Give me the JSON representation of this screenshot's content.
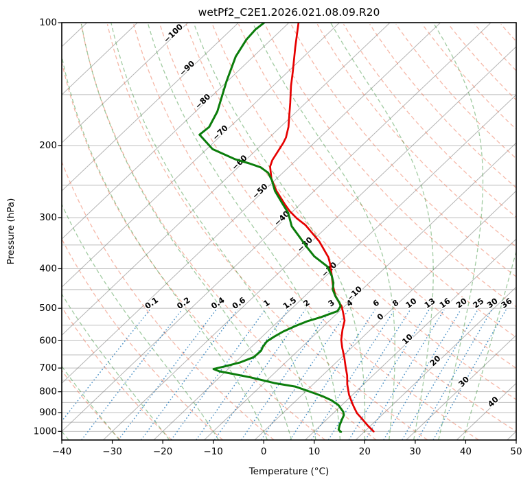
{
  "title": "wetPf2_C2E1.2026.021.08.09.R20",
  "axes": {
    "x_label": "Temperature (°C)",
    "y_label": "Pressure (hPa)",
    "x_ticks": [
      -40,
      -30,
      -20,
      -10,
      0,
      10,
      20,
      30,
      40,
      50
    ],
    "y_ticks": [
      100,
      200,
      300,
      400,
      500,
      600,
      700,
      800,
      900,
      1000
    ],
    "x_range": [
      -40,
      50
    ],
    "p_range": [
      100,
      1050
    ],
    "y_scale": "log",
    "grid": true
  },
  "background": {
    "pressure_lines": {
      "start": 100,
      "end": 1000,
      "step": 50,
      "color": "#999999",
      "opacity": 0.65
    },
    "isotherms": {
      "start": -130,
      "end": 50,
      "step": 10,
      "color": "#777777",
      "opacity": 0.55
    },
    "dry_adiabats": {
      "start": -30,
      "end": 200,
      "step": 10,
      "color": "#ed7151",
      "opacity": 0.5
    },
    "moist_adiabats": {
      "values": [
        -40,
        -30,
        -20,
        -10,
        0,
        5,
        10,
        15,
        20,
        25,
        30,
        35,
        40
      ],
      "color": "#2e8b2e",
      "opacity": 0.45
    },
    "mixing_ratios": {
      "values": [
        0.1,
        0.2,
        0.4,
        0.6,
        1,
        1.5,
        2,
        3,
        4,
        6,
        8,
        10,
        13,
        16,
        20,
        25,
        30,
        36
      ],
      "color": "#2e7ebc",
      "opacity": 0.9,
      "bottom_pressure": 1050,
      "top_pressure": 500,
      "label_pressure": 487
    }
  },
  "line_labels": {
    "isotherm_values": [
      -100,
      -90,
      -80,
      -70,
      -60,
      -50,
      -40,
      -30,
      -20,
      -10,
      0,
      10,
      20,
      30,
      40
    ],
    "negative_color": "#1f77b4",
    "zero_color": "#7f7f7f",
    "positive_color": "#c62828",
    "mixing_color": "#1f77b4",
    "cross_theta_k": 328.15
  },
  "chart_data": {
    "type": "line",
    "projection": "skew-t-log-p",
    "title": "wetPf2_C2E1.2026.021.08.09.R20",
    "xlabel": "Temperature (°C)",
    "ylabel": "Pressure (hPa)",
    "x_range": [
      -40,
      50
    ],
    "y_range_hpa": [
      1050,
      100
    ],
    "y_scale": "log",
    "point_format": "[pressure_hPa, temperature_C]",
    "series": [
      {
        "name": "temperature",
        "color": "#e60000",
        "width": 2.7,
        "points": [
          [
            100,
            -78.1
          ],
          [
            115,
            -73.6
          ],
          [
            132,
            -69.0
          ],
          [
            143,
            -66.4
          ],
          [
            157,
            -63.1
          ],
          [
            180,
            -58.4
          ],
          [
            191,
            -56.7
          ],
          [
            197,
            -56.1
          ],
          [
            217,
            -54.7
          ],
          [
            225,
            -53.8
          ],
          [
            241,
            -51.0
          ],
          [
            258,
            -47.5
          ],
          [
            278,
            -43.1
          ],
          [
            289,
            -40.7
          ],
          [
            301,
            -37.8
          ],
          [
            313,
            -34.6
          ],
          [
            343,
            -28.5
          ],
          [
            375,
            -23.4
          ],
          [
            390,
            -21.6
          ],
          [
            413,
            -19.2
          ],
          [
            438,
            -16.8
          ],
          [
            464,
            -14.2
          ],
          [
            483,
            -12.0
          ],
          [
            494,
            -10.6
          ],
          [
            512,
            -9.0
          ],
          [
            536,
            -7.0
          ],
          [
            563,
            -5.6
          ],
          [
            597,
            -3.7
          ],
          [
            625,
            -1.8
          ],
          [
            658,
            0.5
          ],
          [
            692,
            2.6
          ],
          [
            730,
            4.9
          ],
          [
            768,
            6.8
          ],
          [
            814,
            9.3
          ],
          [
            852,
            11.6
          ],
          [
            872,
            12.8
          ],
          [
            903,
            14.7
          ],
          [
            931,
            16.8
          ],
          [
            968,
            19.4
          ],
          [
            1001,
            21.8
          ]
        ]
      },
      {
        "name": "dewpoint",
        "color": "#0b7d0b",
        "width": 3,
        "points": [
          [
            100,
            -84.9
          ],
          [
            104,
            -85.2
          ],
          [
            110,
            -84.9
          ],
          [
            121,
            -83.5
          ],
          [
            139,
            -80.2
          ],
          [
            165,
            -75.7
          ],
          [
            180,
            -74.1
          ],
          [
            188,
            -74.4
          ],
          [
            204,
            -68.8
          ],
          [
            216,
            -62.2
          ],
          [
            221,
            -58.6
          ],
          [
            226,
            -55.5
          ],
          [
            233,
            -52.9
          ],
          [
            243,
            -50.6
          ],
          [
            258,
            -47.8
          ],
          [
            276,
            -43.9
          ],
          [
            292,
            -40.6
          ],
          [
            315,
            -37.1
          ],
          [
            332,
            -33.8
          ],
          [
            354,
            -29.8
          ],
          [
            373,
            -26.4
          ],
          [
            395,
            -21.7
          ],
          [
            417,
            -18.8
          ],
          [
            433,
            -17.1
          ],
          [
            450,
            -15.8
          ],
          [
            468,
            -13.8
          ],
          [
            484,
            -11.8
          ],
          [
            494,
            -10.8
          ],
          [
            508,
            -10.4
          ],
          [
            526,
            -12.5
          ],
          [
            538,
            -14.3
          ],
          [
            553,
            -15.7
          ],
          [
            570,
            -16.9
          ],
          [
            586,
            -17.6
          ],
          [
            602,
            -18.1
          ],
          [
            620,
            -17.8
          ],
          [
            635,
            -17.3
          ],
          [
            658,
            -17.4
          ],
          [
            678,
            -19.0
          ],
          [
            692,
            -21.0
          ],
          [
            704,
            -22.9
          ],
          [
            713,
            -21.3
          ],
          [
            724,
            -17.9
          ],
          [
            738,
            -13.8
          ],
          [
            762,
            -7.9
          ],
          [
            777,
            -3.1
          ],
          [
            798,
            0.6
          ],
          [
            820,
            4.3
          ],
          [
            839,
            6.9
          ],
          [
            862,
            9.3
          ],
          [
            896,
            11.7
          ],
          [
            913,
            12.5
          ],
          [
            939,
            13.1
          ],
          [
            968,
            13.8
          ],
          [
            991,
            14.5
          ],
          [
            1003,
            15.4
          ]
        ]
      }
    ]
  }
}
